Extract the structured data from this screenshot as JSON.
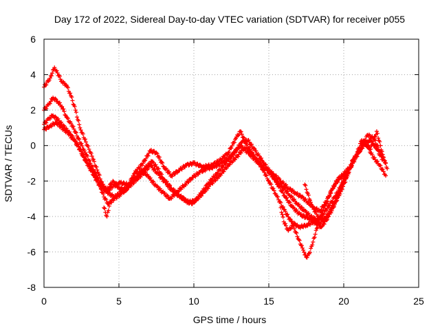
{
  "chart_data": {
    "type": "scatter",
    "title": "Day 172 of 2022, Sidereal Day-to-day VTEC variation (SDTVAR) for receiver p055",
    "xlabel": "GPS time / hours",
    "ylabel": "SDTVAR / TECUs",
    "xlim": [
      0,
      25
    ],
    "ylim": [
      -8,
      6
    ],
    "xticks": [
      0,
      5,
      10,
      15,
      20,
      25
    ],
    "yticks": [
      -8,
      -6,
      -4,
      -2,
      0,
      2,
      4,
      6
    ],
    "grid": true,
    "marker": "+",
    "color": "#ff0000",
    "series": [
      {
        "name": "track-1",
        "x": [
          0.0,
          0.4,
          0.7,
          0.9,
          1.2,
          1.5,
          1.8,
          2.1,
          2.4,
          2.8,
          3.2,
          3.6,
          3.9,
          4.2,
          4.6,
          5.0,
          5.5,
          6.0,
          6.6,
          7.1,
          7.5,
          8.0,
          8.5,
          9.0,
          9.5,
          10.0,
          10.6,
          11.2,
          11.8,
          12.3,
          12.8,
          13.1,
          13.5,
          14.0,
          14.5,
          15.0,
          15.5,
          16.0,
          16.5,
          17.0,
          17.5,
          18.0,
          18.5,
          19.0,
          19.4,
          19.8,
          20.2,
          20.6,
          21.0,
          21.4,
          21.8,
          22.2,
          22.6,
          22.9
        ],
        "y": [
          3.3,
          3.8,
          4.4,
          4.1,
          3.6,
          3.4,
          2.8,
          2.0,
          1.0,
          0.2,
          -0.6,
          -1.5,
          -2.2,
          -2.5,
          -2.0,
          -2.4,
          -2.5,
          -1.6,
          -1.0,
          -0.3,
          -0.4,
          -1.2,
          -1.7,
          -1.4,
          -1.1,
          -1.0,
          -1.2,
          -1.1,
          -0.8,
          -0.4,
          0.4,
          0.8,
          0.1,
          -0.6,
          -1.2,
          -2.0,
          -2.8,
          -3.6,
          -4.3,
          -4.6,
          -4.5,
          -4.3,
          -4.6,
          -4.0,
          -3.3,
          -2.6,
          -1.8,
          -0.8,
          -0.4,
          0.2,
          -0.2,
          0.8,
          -0.5,
          -1.3
        ]
      },
      {
        "name": "track-2",
        "x": [
          0.0,
          0.3,
          0.6,
          0.9,
          1.2,
          1.5,
          1.9,
          2.3,
          2.7,
          3.1,
          3.5,
          3.9,
          4.3,
          4.7,
          5.2,
          5.7,
          6.2,
          6.7,
          7.2,
          7.6,
          8.0,
          8.5,
          9.0,
          9.5,
          9.9,
          10.4,
          10.9,
          11.5,
          12.1,
          12.7,
          13.2,
          13.6,
          14.1,
          14.6,
          15.1,
          15.6,
          16.1,
          16.6,
          17.1,
          17.6,
          18.0,
          18.4,
          18.8,
          19.2,
          19.6,
          20.0,
          20.4,
          20.8,
          21.2,
          21.6,
          22.0,
          22.4,
          22.8
        ],
        "y": [
          2.0,
          2.3,
          2.7,
          2.5,
          2.2,
          1.6,
          1.1,
          0.4,
          -0.3,
          -1.0,
          -1.7,
          -2.3,
          -2.7,
          -2.9,
          -2.6,
          -2.2,
          -1.7,
          -1.3,
          -0.9,
          -1.3,
          -1.9,
          -2.4,
          -2.8,
          -3.1,
          -3.3,
          -2.8,
          -2.2,
          -1.6,
          -1.0,
          -0.4,
          0.2,
          0.3,
          -0.3,
          -0.9,
          -1.5,
          -2.2,
          -2.9,
          -3.5,
          -3.9,
          -4.1,
          -4.2,
          -4.4,
          -4.1,
          -3.5,
          -2.8,
          -2.0,
          -1.3,
          -0.6,
          0.3,
          -0.1,
          -0.7,
          -1.1,
          -1.7
        ]
      },
      {
        "name": "track-3",
        "x": [
          0.0,
          0.3,
          0.6,
          1.0,
          1.4,
          1.8,
          2.2,
          2.6,
          3.0,
          3.4,
          3.8,
          4.2,
          4.6,
          5.1,
          5.6,
          6.1,
          6.6,
          7.0,
          7.5,
          8.0,
          8.4,
          8.9,
          9.4,
          9.9,
          10.4,
          10.9,
          11.4,
          12.0,
          12.6,
          13.1,
          13.6,
          14.2,
          14.8,
          15.3,
          15.8,
          16.3,
          16.8,
          17.2,
          17.6,
          18.0,
          18.4,
          18.8,
          19.2,
          19.6,
          20.0,
          20.4,
          20.8,
          21.2,
          21.6,
          22.0,
          22.4,
          22.8
        ],
        "y": [
          1.2,
          1.5,
          1.7,
          1.4,
          1.0,
          0.6,
          0.1,
          -0.6,
          -1.2,
          -1.8,
          -2.4,
          -2.6,
          -2.3,
          -2.1,
          -2.2,
          -1.8,
          -1.4,
          -1.8,
          -2.3,
          -2.7,
          -3.0,
          -2.6,
          -2.2,
          -1.8,
          -1.5,
          -1.3,
          -1.2,
          -0.9,
          -0.5,
          0.0,
          -0.4,
          -0.9,
          -1.3,
          -1.6,
          -2.0,
          -2.4,
          -2.7,
          -2.9,
          -3.2,
          -3.5,
          -3.7,
          -3.2,
          -2.5,
          -1.9,
          -1.6,
          -1.2,
          -0.6,
          0.0,
          0.6,
          0.4,
          -0.3,
          -1.0
        ]
      },
      {
        "name": "track-4",
        "x": [
          0.0,
          0.4,
          0.8,
          1.2,
          1.6,
          2.0,
          2.4,
          2.8,
          3.2,
          3.6,
          4.0,
          4.3,
          4.7,
          5.2,
          5.7,
          6.2,
          6.7,
          7.1,
          7.6,
          8.1,
          8.6,
          9.1,
          9.6,
          10.1,
          10.6,
          11.1,
          11.7,
          12.3,
          12.9,
          13.4,
          13.9,
          14.4,
          14.9,
          15.4,
          15.9,
          16.4,
          16.9,
          17.4,
          17.8,
          18.2,
          18.6,
          19.0,
          19.4,
          19.8,
          20.2,
          20.6,
          21.0,
          21.4,
          21.8,
          22.2,
          22.6
        ],
        "y": [
          0.9,
          1.1,
          1.3,
          1.0,
          0.7,
          0.3,
          -0.2,
          -0.8,
          -1.4,
          -2.0,
          -2.9,
          -3.3,
          -3.0,
          -2.7,
          -2.3,
          -1.9,
          -1.5,
          -1.1,
          -1.6,
          -2.1,
          -2.6,
          -2.9,
          -3.2,
          -3.1,
          -2.7,
          -2.2,
          -1.7,
          -1.1,
          -0.6,
          -0.1,
          -0.5,
          -1.0,
          -1.4,
          -1.9,
          -2.3,
          -2.8,
          -3.3,
          -3.7,
          -4.0,
          -4.2,
          -3.9,
          -3.4,
          -2.9,
          -2.3,
          -1.7,
          -1.0,
          -0.4,
          0.1,
          0.3,
          -0.2,
          -0.8
        ]
      },
      {
        "name": "track-5",
        "x": [
          4.0,
          4.2,
          4.4,
          15.8,
          16.0,
          16.3,
          16.6,
          17.0,
          17.3,
          17.5,
          17.7,
          17.9,
          18.1,
          18.3,
          18.5,
          18.8,
          19.1,
          19.4,
          19.7,
          20.0,
          20.3
        ],
        "y": [
          -3.5,
          -4.0,
          -3.2,
          -3.5,
          -4.3,
          -4.8,
          -4.5,
          -5.3,
          -5.9,
          -6.3,
          -6.1,
          -5.6,
          -5.0,
          -4.4,
          -3.8,
          -3.3,
          -2.7,
          -2.2,
          -1.9,
          -1.7,
          -1.5
        ]
      },
      {
        "name": "track-6",
        "x": [
          17.4,
          17.6,
          17.8,
          18.0,
          18.3,
          18.6,
          18.9,
          19.2,
          19.5,
          19.8,
          20.1
        ],
        "y": [
          -2.2,
          -2.7,
          -3.2,
          -3.6,
          -4.0,
          -4.2,
          -4.0,
          -3.6,
          -3.1,
          -2.4,
          -1.8
        ]
      }
    ]
  }
}
